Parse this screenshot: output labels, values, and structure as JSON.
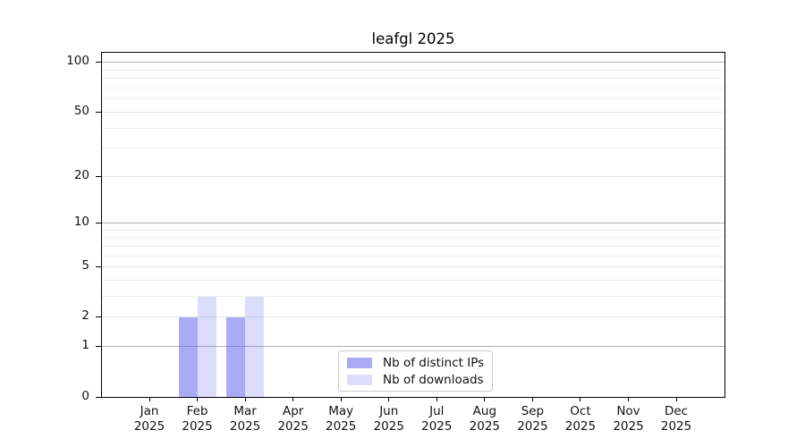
{
  "chart_data": {
    "type": "bar",
    "title": "leafgl 2025",
    "year": "2025",
    "categories": [
      "Jan",
      "Feb",
      "Mar",
      "Apr",
      "May",
      "Jun",
      "Jul",
      "Aug",
      "Sep",
      "Oct",
      "Nov",
      "Dec"
    ],
    "series": [
      {
        "name": "Nb of distinct IPs",
        "fill": "rgba(85,85,235,0.5)",
        "values": [
          0,
          2,
          2,
          0,
          0,
          0,
          0,
          0,
          0,
          0,
          0,
          0
        ]
      },
      {
        "name": "Nb of downloads",
        "fill": "rgba(85,85,235,0.2)",
        "values": [
          0,
          3,
          3,
          0,
          0,
          0,
          0,
          0,
          0,
          0,
          0,
          0
        ]
      }
    ],
    "y_ticks": [
      0,
      1,
      2,
      5,
      10,
      20,
      50,
      100
    ],
    "yscale": "log10(1+value)",
    "ylim": [
      0,
      115
    ],
    "grid": {
      "major": [
        1,
        10,
        100
      ],
      "labeled": [
        2,
        5,
        20,
        50
      ],
      "minor": [
        3,
        4,
        6,
        7,
        8,
        9,
        30,
        40,
        60,
        70,
        80,
        90
      ]
    },
    "legend_position": "lower center",
    "colors": {
      "bar_base": "#5555eb",
      "grid_major": "#b3b3b3",
      "grid_labeled": "#e4e4e4",
      "grid_minor": "#eeeeee",
      "axis": "#000000",
      "legend_border": "#cccccc"
    }
  }
}
